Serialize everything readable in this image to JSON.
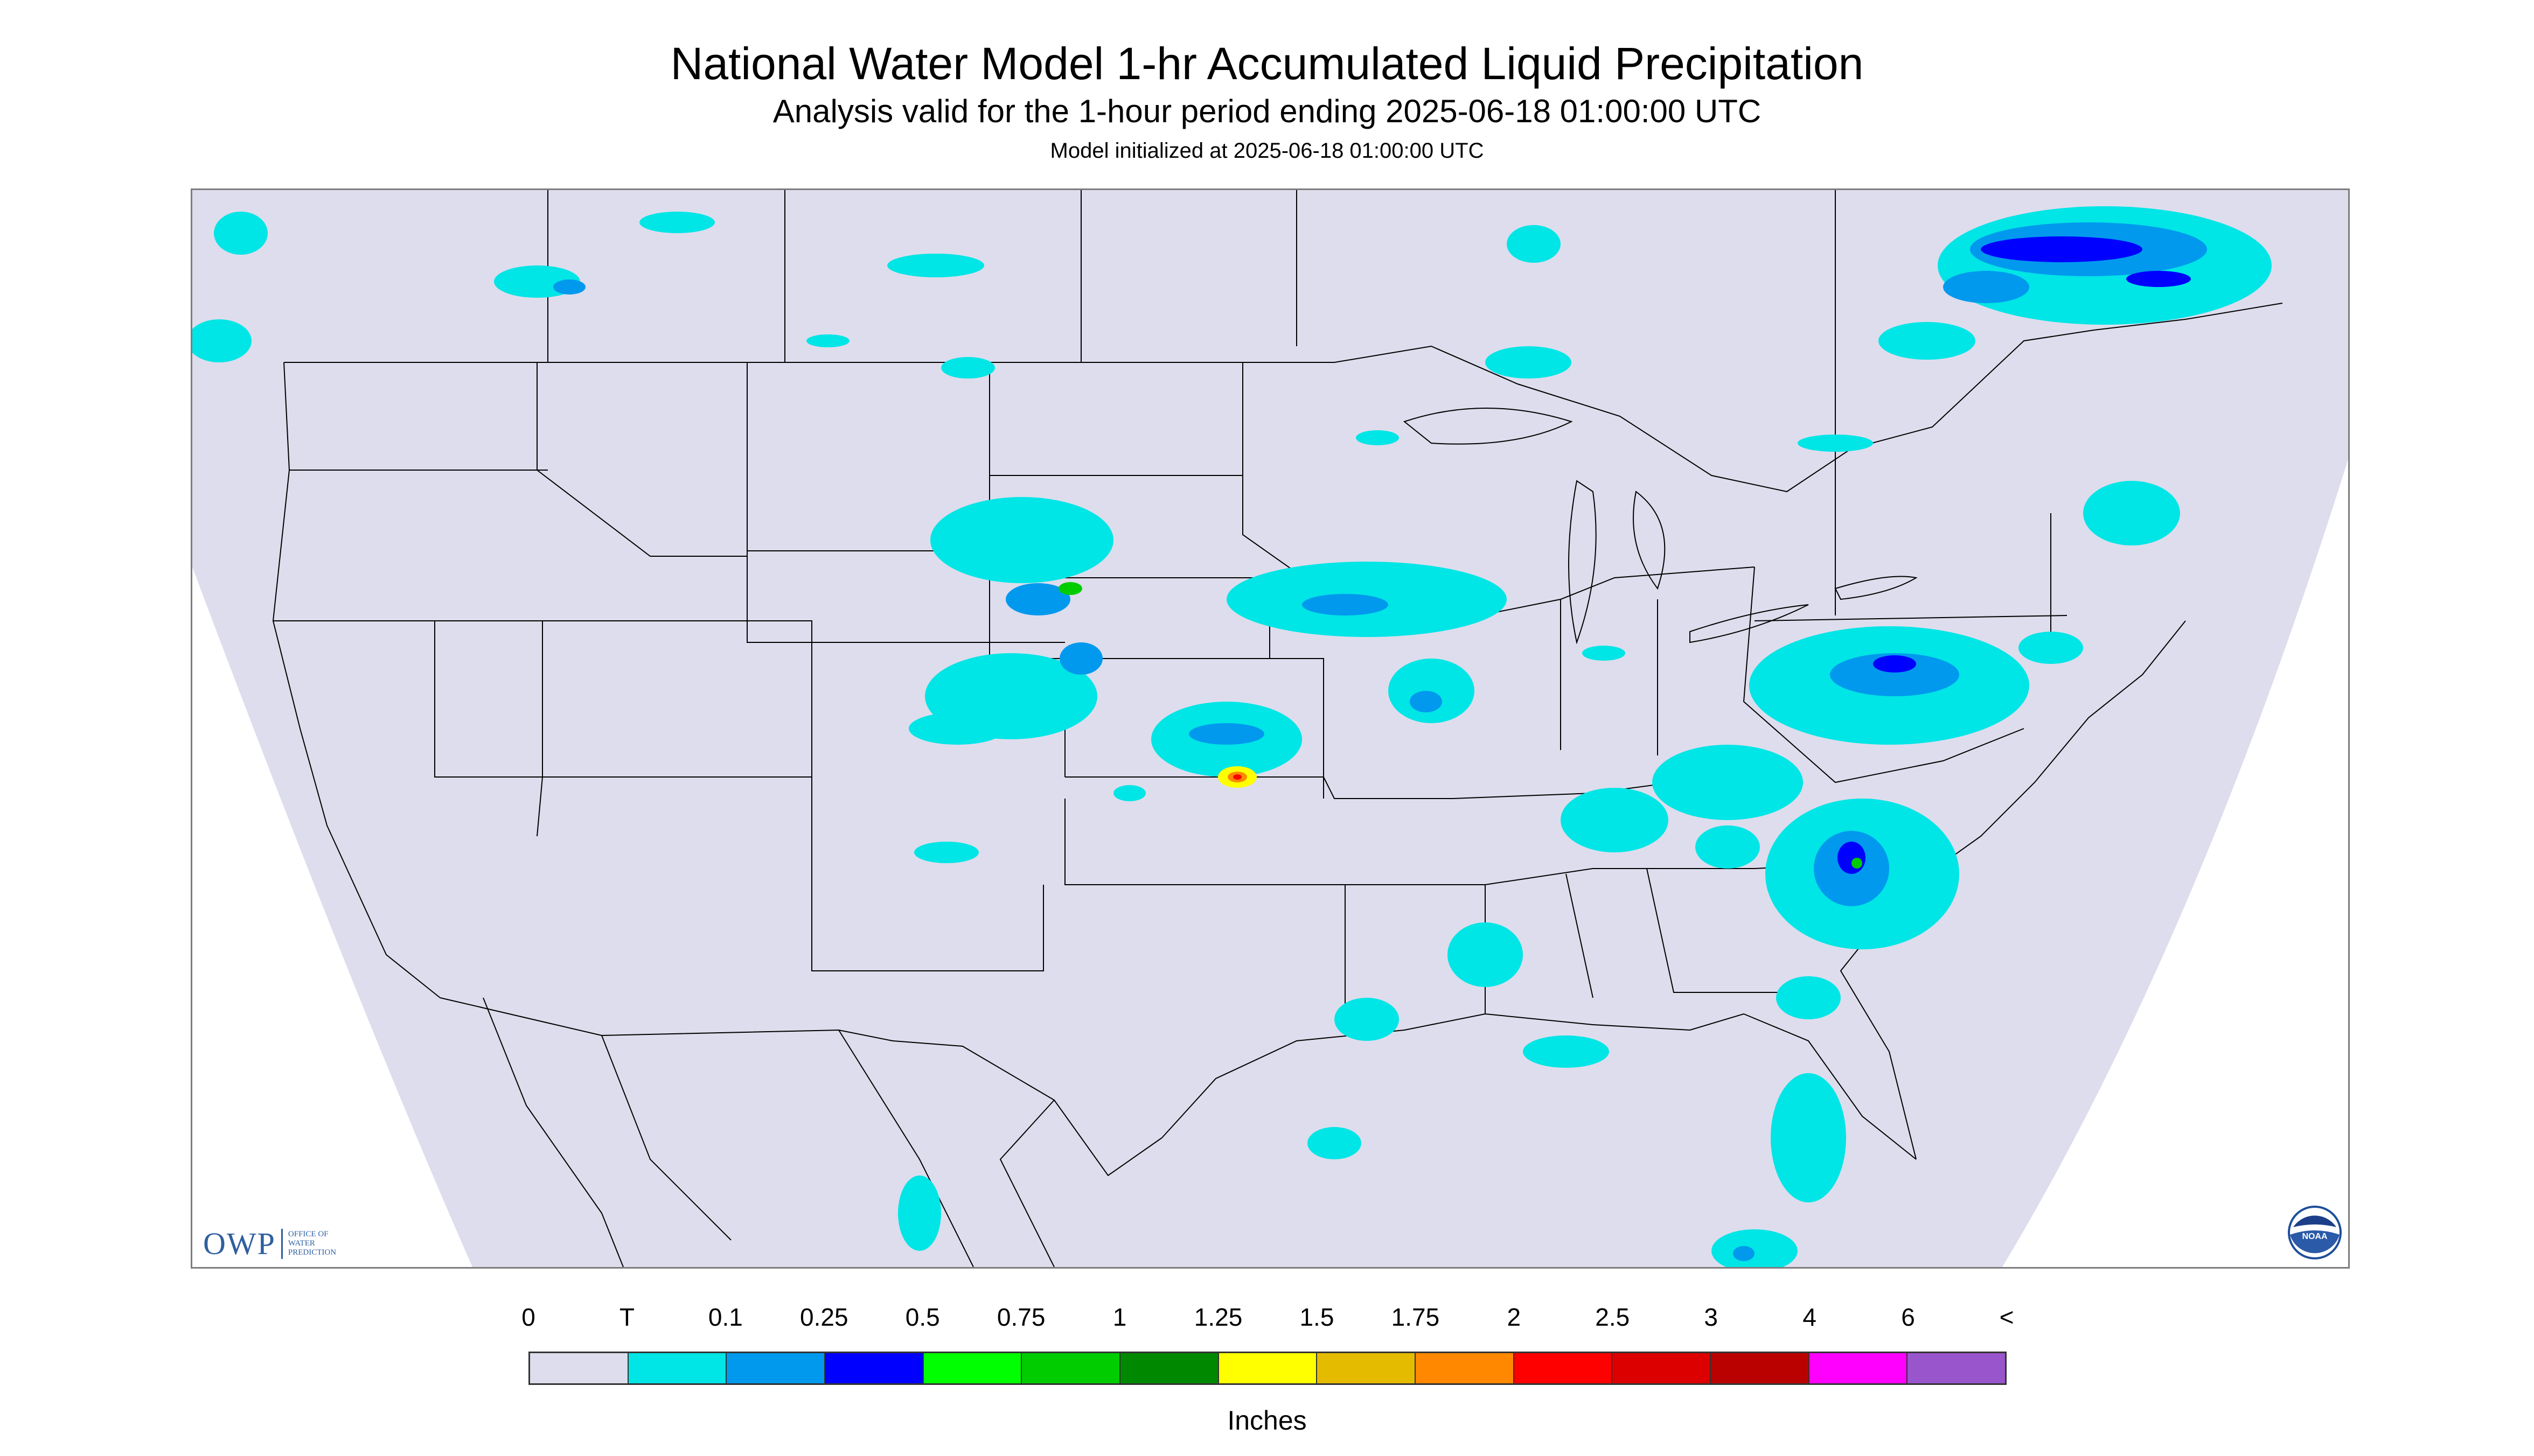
{
  "header": {
    "title": "National Water Model 1-hr Accumulated Liquid Precipitation",
    "subtitle": "Analysis valid for the 1-hour period ending 2025-06-18 01:00:00 UTC",
    "init": "Model initialized at 2025-06-18 01:00:00 UTC"
  },
  "map": {
    "background_color": "#dddded",
    "offgrid_color": "#ffffff",
    "boundary_color": "#000000",
    "logo_owp": {
      "mark": "OWP",
      "line1": "OFFICE OF",
      "line2": "WATER",
      "line3": "PREDICTION"
    },
    "logo_noaa": {
      "icon": "noaa-logo",
      "text": "NOAA"
    }
  },
  "legend": {
    "labels": [
      "0",
      "T",
      "0.1",
      "0.25",
      "0.5",
      "0.75",
      "1",
      "1.25",
      "1.5",
      "1.75",
      "2",
      "2.5",
      "3",
      "4",
      "6",
      "<"
    ],
    "colors": [
      "#dddded",
      "#00e5e5",
      "#0099ee",
      "#0000ff",
      "#00ff00",
      "#00cc00",
      "#008800",
      "#ffff00",
      "#e5bb00",
      "#ff8800",
      "#ff0000",
      "#dd0000",
      "#bb0000",
      "#ff00ff",
      "#9955cc"
    ],
    "units": "Inches"
  }
}
